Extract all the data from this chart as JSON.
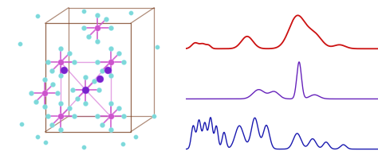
{
  "fig_width": 4.74,
  "fig_height": 1.95,
  "dpi": 100,
  "right_panel_bg": "#f8f8f8",
  "red_color": "#cc1111",
  "purple_color": "#6622bb",
  "blue_color": "#1a1ab0",
  "n_points": 600,
  "crystal_bg": "#050505",
  "box_color": "#7a4020",
  "cyan_color": "#7ed9d9",
  "pink_color": "#cc55cc",
  "purple_atom_color": "#7722cc"
}
